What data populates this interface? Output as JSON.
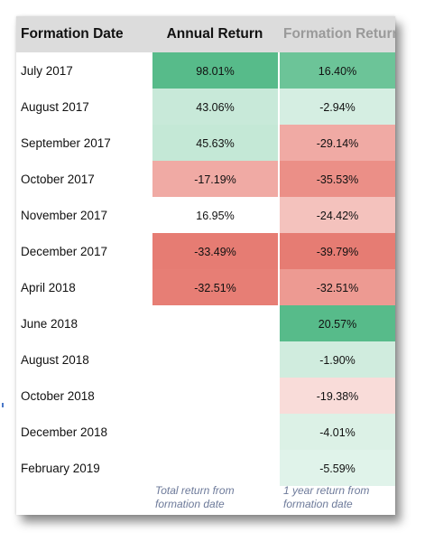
{
  "table": {
    "headers": {
      "formation_date": "Formation Date",
      "annual_return": "Annual Return",
      "formation_return": "Formation Return"
    },
    "rows": [
      {
        "date": "July 2017",
        "annual": "98.01%",
        "annual_color": "#57bb8a",
        "formation": "16.40%",
        "formation_color": "#6cc498"
      },
      {
        "date": "August 2017",
        "annual": "43.06%",
        "annual_color": "#c8e9d9",
        "formation": "-2.94%",
        "formation_color": "#d5eee2"
      },
      {
        "date": "September 2017",
        "annual": "45.63%",
        "annual_color": "#c4e8d6",
        "formation": "-29.14%",
        "formation_color": "#f0aaa4"
      },
      {
        "date": "October 2017",
        "annual": "-17.19%",
        "annual_color": "#f0aaa4",
        "formation": "-35.53%",
        "formation_color": "#eb8f87"
      },
      {
        "date": "November 2017",
        "annual": "16.95%",
        "annual_color": "#ffffff",
        "formation": "-24.42%",
        "formation_color": "#f4c2bd"
      },
      {
        "date": "December 2017",
        "annual": "-33.49%",
        "annual_color": "#e67c73",
        "formation": "-39.79%",
        "formation_color": "#e67c73"
      },
      {
        "date": "April 2018",
        "annual": "-32.51%",
        "annual_color": "#e77e75",
        "formation": "-32.51%",
        "formation_color": "#ed9a92"
      },
      {
        "date": "June 2018",
        "annual": "",
        "annual_color": "#ffffff",
        "formation": "20.57%",
        "formation_color": "#57bb8a"
      },
      {
        "date": "August 2018",
        "annual": "",
        "annual_color": "#ffffff",
        "formation": "-1.90%",
        "formation_color": "#d0ecde"
      },
      {
        "date": "October 2018",
        "annual": "",
        "annual_color": "#ffffff",
        "formation": "-19.38%",
        "formation_color": "#f9dcd9"
      },
      {
        "date": "December 2018",
        "annual": "",
        "annual_color": "#ffffff",
        "formation": "-4.01%",
        "formation_color": "#dcf1e6"
      },
      {
        "date": "February 2019",
        "annual": "",
        "annual_color": "#ffffff",
        "formation": "-5.59%",
        "formation_color": "#e0f3ea"
      }
    ],
    "notes": {
      "annual": "Total return from formation date",
      "formation": "1 year return from formation date"
    }
  }
}
